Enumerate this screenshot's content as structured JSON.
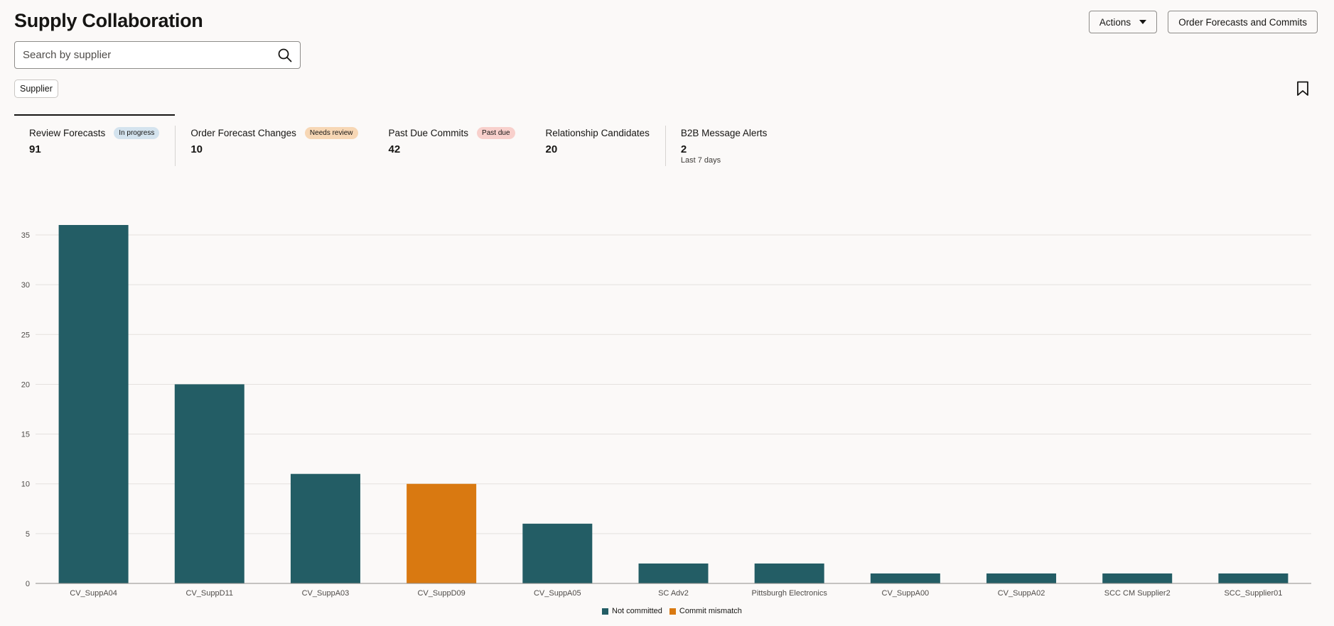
{
  "header": {
    "title": "Supply Collaboration",
    "actions_label": "Actions",
    "order_forecasts_label": "Order Forecasts and Commits"
  },
  "search": {
    "placeholder": "Search by supplier",
    "icon": "search-icon"
  },
  "filter_chip": {
    "label": "Supplier"
  },
  "bookmark": {
    "icon": "bookmark-icon"
  },
  "infolets": [
    {
      "label": "Review Forecasts",
      "badge": "In progress",
      "badge_bg": "#d4e3ee",
      "count": "91",
      "sub": ""
    },
    {
      "label": "Order Forecast Changes",
      "badge": "Needs review",
      "badge_bg": "#f7d7b5",
      "count": "10",
      "sub": ""
    },
    {
      "label": "Past Due Commits",
      "badge": "Past due",
      "badge_bg": "#f8d0cc",
      "count": "42",
      "sub": ""
    },
    {
      "label": "Relationship Candidates",
      "badge": "",
      "badge_bg": "",
      "count": "20",
      "sub": ""
    },
    {
      "label": "B2B Message Alerts",
      "badge": "",
      "badge_bg": "",
      "count": "2",
      "sub": "Last 7 days"
    }
  ],
  "chart_data": {
    "type": "bar",
    "categories": [
      "CV_SuppA04",
      "CV_SuppD11",
      "CV_SuppA03",
      "CV_SuppD09",
      "CV_SuppA05",
      "SC Adv2",
      "Pittsburgh Electronics",
      "CV_SuppA00",
      "CV_SuppA02",
      "SCC CM Supplier2",
      "SCC_Supplier01"
    ],
    "series": [
      {
        "name": "Not committed",
        "color": "#235d65",
        "values": [
          36,
          20,
          11,
          0,
          6,
          2,
          2,
          1,
          1,
          1,
          1
        ]
      },
      {
        "name": "Commit mismatch",
        "color": "#d97911",
        "values": [
          0,
          0,
          0,
          10,
          0,
          0,
          0,
          0,
          0,
          0,
          0
        ]
      }
    ],
    "yticks": [
      0,
      5,
      10,
      15,
      20,
      25,
      30,
      35
    ],
    "ylim": [
      0,
      36
    ],
    "grid": true,
    "legend_position": "bottom-center"
  }
}
